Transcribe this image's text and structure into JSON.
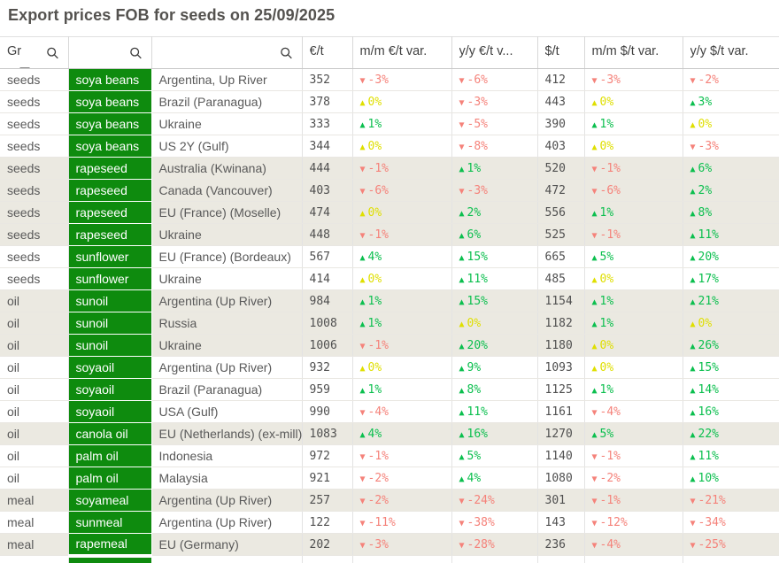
{
  "title": "Export prices FOB for seeds on 25/09/2025",
  "colors": {
    "product_cell_green": "#0e8b0e",
    "positive_green": "#0bbf4e",
    "zero_yellow": "#dfdf00",
    "negative_salmon": "#f5827a",
    "banded_row_beige": "#ebe9e1"
  },
  "table": {
    "headers": [
      "Gr",
      "",
      "",
      "€/t",
      "m/m €/t var.",
      "y/y €/t v...",
      "$/t",
      "m/m $/t var.",
      "y/y $/t var."
    ],
    "search_icon": "magnifier",
    "sort_indicator_column": "Gr",
    "rows": [
      {
        "group": "seeds",
        "product": "soya beans",
        "origin": "Argentina, Up River",
        "eur": "352",
        "mm_eur": [
          "▼",
          "-3%",
          "neg"
        ],
        "yy_eur": [
          "▼",
          "-6%",
          "neg"
        ],
        "usd": "412",
        "mm_usd": [
          "▼",
          "-3%",
          "neg"
        ],
        "yy_usd": [
          "▼",
          "-2%",
          "neg"
        ],
        "banded": false
      },
      {
        "group": "seeds",
        "product": "soya beans",
        "origin": "Brazil (Paranagua)",
        "eur": "378",
        "mm_eur": [
          "▲",
          "0%",
          "zero"
        ],
        "yy_eur": [
          "▼",
          "-3%",
          "neg"
        ],
        "usd": "443",
        "mm_usd": [
          "▲",
          "0%",
          "zero"
        ],
        "yy_usd": [
          "▲",
          "3%",
          "pos"
        ],
        "banded": false
      },
      {
        "group": "seeds",
        "product": "soya beans",
        "origin": "Ukraine",
        "eur": "333",
        "mm_eur": [
          "▲",
          "1%",
          "pos"
        ],
        "yy_eur": [
          "▼",
          "-5%",
          "neg"
        ],
        "usd": "390",
        "mm_usd": [
          "▲",
          "1%",
          "pos"
        ],
        "yy_usd": [
          "▲",
          "0%",
          "zero"
        ],
        "banded": false
      },
      {
        "group": "seeds",
        "product": "soya beans",
        "origin": "US 2Y (Gulf)",
        "eur": "344",
        "mm_eur": [
          "▲",
          "0%",
          "zero"
        ],
        "yy_eur": [
          "▼",
          "-8%",
          "neg"
        ],
        "usd": "403",
        "mm_usd": [
          "▲",
          "0%",
          "zero"
        ],
        "yy_usd": [
          "▼",
          "-3%",
          "neg"
        ],
        "banded": false
      },
      {
        "group": "seeds",
        "product": "rapeseed",
        "origin": "Australia (Kwinana)",
        "eur": "444",
        "mm_eur": [
          "▼",
          "-1%",
          "neg"
        ],
        "yy_eur": [
          "▲",
          "1%",
          "pos"
        ],
        "usd": "520",
        "mm_usd": [
          "▼",
          "-1%",
          "neg"
        ],
        "yy_usd": [
          "▲",
          "6%",
          "pos"
        ],
        "banded": true
      },
      {
        "group": "seeds",
        "product": "rapeseed",
        "origin": "Canada (Vancouver)",
        "eur": "403",
        "mm_eur": [
          "▼",
          "-6%",
          "neg"
        ],
        "yy_eur": [
          "▼",
          "-3%",
          "neg"
        ],
        "usd": "472",
        "mm_usd": [
          "▼",
          "-6%",
          "neg"
        ],
        "yy_usd": [
          "▲",
          "2%",
          "pos"
        ],
        "banded": true
      },
      {
        "group": "seeds",
        "product": "rapeseed",
        "origin": "EU (France) (Moselle)",
        "eur": "474",
        "mm_eur": [
          "▲",
          "0%",
          "zero"
        ],
        "yy_eur": [
          "▲",
          "2%",
          "pos"
        ],
        "usd": "556",
        "mm_usd": [
          "▲",
          "1%",
          "pos"
        ],
        "yy_usd": [
          "▲",
          "8%",
          "pos"
        ],
        "banded": true
      },
      {
        "group": "seeds",
        "product": "rapeseed",
        "origin": "Ukraine",
        "eur": "448",
        "mm_eur": [
          "▼",
          "-1%",
          "neg"
        ],
        "yy_eur": [
          "▲",
          "6%",
          "pos"
        ],
        "usd": "525",
        "mm_usd": [
          "▼",
          "-1%",
          "neg"
        ],
        "yy_usd": [
          "▲",
          "11%",
          "pos"
        ],
        "banded": true
      },
      {
        "group": "seeds",
        "product": "sunflower",
        "origin": "EU (France) (Bordeaux)",
        "eur": "567",
        "mm_eur": [
          "▲",
          "4%",
          "pos"
        ],
        "yy_eur": [
          "▲",
          "15%",
          "pos"
        ],
        "usd": "665",
        "mm_usd": [
          "▲",
          "5%",
          "pos"
        ],
        "yy_usd": [
          "▲",
          "20%",
          "pos"
        ],
        "banded": false
      },
      {
        "group": "seeds",
        "product": "sunflower",
        "origin": "Ukraine",
        "eur": "414",
        "mm_eur": [
          "▲",
          "0%",
          "zero"
        ],
        "yy_eur": [
          "▲",
          "11%",
          "pos"
        ],
        "usd": "485",
        "mm_usd": [
          "▲",
          "0%",
          "zero"
        ],
        "yy_usd": [
          "▲",
          "17%",
          "pos"
        ],
        "banded": false
      },
      {
        "group": "oil",
        "product": "sunoil",
        "origin": "Argentina (Up River)",
        "eur": "984",
        "mm_eur": [
          "▲",
          "1%",
          "pos"
        ],
        "yy_eur": [
          "▲",
          "15%",
          "pos"
        ],
        "usd": "1154",
        "mm_usd": [
          "▲",
          "1%",
          "pos"
        ],
        "yy_usd": [
          "▲",
          "21%",
          "pos"
        ],
        "banded": true
      },
      {
        "group": "oil",
        "product": "sunoil",
        "origin": "Russia",
        "eur": "1008",
        "mm_eur": [
          "▲",
          "1%",
          "pos"
        ],
        "yy_eur": [
          "▲",
          "0%",
          "zero"
        ],
        "usd": "1182",
        "mm_usd": [
          "▲",
          "1%",
          "pos"
        ],
        "yy_usd": [
          "▲",
          "0%",
          "zero"
        ],
        "banded": true
      },
      {
        "group": "oil",
        "product": "sunoil",
        "origin": "Ukraine",
        "eur": "1006",
        "mm_eur": [
          "▼",
          "-1%",
          "neg"
        ],
        "yy_eur": [
          "▲",
          "20%",
          "pos"
        ],
        "usd": "1180",
        "mm_usd": [
          "▲",
          "0%",
          "zero"
        ],
        "yy_usd": [
          "▲",
          "26%",
          "pos"
        ],
        "banded": true
      },
      {
        "group": "oil",
        "product": "soyaoil",
        "origin": "Argentina (Up River)",
        "eur": "932",
        "mm_eur": [
          "▲",
          "0%",
          "zero"
        ],
        "yy_eur": [
          "▲",
          "9%",
          "pos"
        ],
        "usd": "1093",
        "mm_usd": [
          "▲",
          "0%",
          "zero"
        ],
        "yy_usd": [
          "▲",
          "15%",
          "pos"
        ],
        "banded": false
      },
      {
        "group": "oil",
        "product": "soyaoil",
        "origin": "Brazil (Paranagua)",
        "eur": "959",
        "mm_eur": [
          "▲",
          "1%",
          "pos"
        ],
        "yy_eur": [
          "▲",
          "8%",
          "pos"
        ],
        "usd": "1125",
        "mm_usd": [
          "▲",
          "1%",
          "pos"
        ],
        "yy_usd": [
          "▲",
          "14%",
          "pos"
        ],
        "banded": false
      },
      {
        "group": "oil",
        "product": "soyaoil",
        "origin": "USA (Gulf)",
        "eur": "990",
        "mm_eur": [
          "▼",
          "-4%",
          "neg"
        ],
        "yy_eur": [
          "▲",
          "11%",
          "pos"
        ],
        "usd": "1161",
        "mm_usd": [
          "▼",
          "-4%",
          "neg"
        ],
        "yy_usd": [
          "▲",
          "16%",
          "pos"
        ],
        "banded": false
      },
      {
        "group": "oil",
        "product": "canola oil",
        "origin": "EU (Netherlands) (ex-mill)",
        "eur": "1083",
        "mm_eur": [
          "▲",
          "4%",
          "pos"
        ],
        "yy_eur": [
          "▲",
          "16%",
          "pos"
        ],
        "usd": "1270",
        "mm_usd": [
          "▲",
          "5%",
          "pos"
        ],
        "yy_usd": [
          "▲",
          "22%",
          "pos"
        ],
        "banded": true
      },
      {
        "group": "oil",
        "product": "palm oil",
        "origin": "Indonesia",
        "eur": "972",
        "mm_eur": [
          "▼",
          "-1%",
          "neg"
        ],
        "yy_eur": [
          "▲",
          "5%",
          "pos"
        ],
        "usd": "1140",
        "mm_usd": [
          "▼",
          "-1%",
          "neg"
        ],
        "yy_usd": [
          "▲",
          "11%",
          "pos"
        ],
        "banded": false
      },
      {
        "group": "oil",
        "product": "palm oil",
        "origin": "Malaysia",
        "eur": "921",
        "mm_eur": [
          "▼",
          "-2%",
          "neg"
        ],
        "yy_eur": [
          "▲",
          "4%",
          "pos"
        ],
        "usd": "1080",
        "mm_usd": [
          "▼",
          "-2%",
          "neg"
        ],
        "yy_usd": [
          "▲",
          "10%",
          "pos"
        ],
        "banded": false
      },
      {
        "group": "meal",
        "product": "soyameal",
        "origin": "Argentina (Up River)",
        "eur": "257",
        "mm_eur": [
          "▼",
          "-2%",
          "neg"
        ],
        "yy_eur": [
          "▼",
          "-24%",
          "neg"
        ],
        "usd": "301",
        "mm_usd": [
          "▼",
          "-1%",
          "neg"
        ],
        "yy_usd": [
          "▼",
          "-21%",
          "neg"
        ],
        "banded": true
      },
      {
        "group": "meal",
        "product": "sunmeal",
        "origin": "Argentina (Up River)",
        "eur": "122",
        "mm_eur": [
          "▼",
          "-11%",
          "neg"
        ],
        "yy_eur": [
          "▼",
          "-38%",
          "neg"
        ],
        "usd": "143",
        "mm_usd": [
          "▼",
          "-12%",
          "neg"
        ],
        "yy_usd": [
          "▼",
          "-34%",
          "neg"
        ],
        "banded": false
      },
      {
        "group": "meal",
        "product": "rapemeal",
        "origin": "EU (Germany)",
        "eur": "202",
        "mm_eur": [
          "▼",
          "-3%",
          "neg"
        ],
        "yy_eur": [
          "▼",
          "-28%",
          "neg"
        ],
        "usd": "236",
        "mm_usd": [
          "▼",
          "-4%",
          "neg"
        ],
        "yy_usd": [
          "▼",
          "-25%",
          "neg"
        ],
        "banded": true
      }
    ]
  }
}
